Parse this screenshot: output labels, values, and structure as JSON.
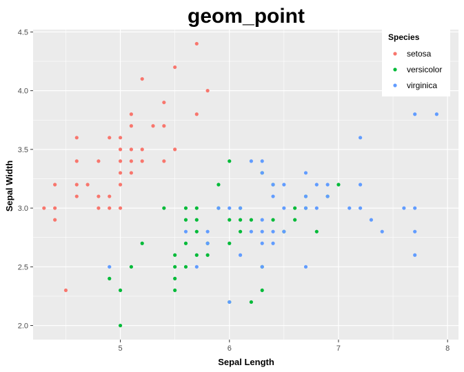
{
  "chart_data": {
    "type": "scatter",
    "title": "geom_point",
    "xlabel": "Sepal Length",
    "ylabel": "Sepal Width",
    "xlim": [
      4.2,
      8.1
    ],
    "ylim": [
      1.88,
      4.52
    ],
    "x_ticks": [
      5,
      6,
      7,
      8
    ],
    "x_tick_labels": [
      "5",
      "6",
      "7",
      "8"
    ],
    "y_ticks": [
      2.0,
      2.5,
      3.0,
      3.5,
      4.0,
      4.5
    ],
    "y_tick_labels": [
      "2.0",
      "2.5",
      "3.0",
      "3.5",
      "4.0",
      "4.5"
    ],
    "grid": true,
    "legend": {
      "title": "Species",
      "position": "top-right"
    },
    "series": [
      {
        "name": "setosa",
        "color": "#F8766D",
        "points": [
          [
            4.3,
            3.0
          ],
          [
            4.4,
            3.2
          ],
          [
            4.4,
            3.0
          ],
          [
            4.4,
            2.9
          ],
          [
            4.5,
            2.3
          ],
          [
            4.6,
            3.6
          ],
          [
            4.6,
            3.4
          ],
          [
            4.6,
            3.2
          ],
          [
            4.6,
            3.1
          ],
          [
            4.7,
            3.2
          ],
          [
            4.8,
            3.4
          ],
          [
            4.8,
            3.1
          ],
          [
            4.8,
            3.0
          ],
          [
            4.9,
            3.6
          ],
          [
            4.9,
            3.1
          ],
          [
            4.9,
            3.0
          ],
          [
            5.0,
            3.6
          ],
          [
            5.0,
            3.5
          ],
          [
            5.0,
            3.4
          ],
          [
            5.0,
            3.3
          ],
          [
            5.0,
            3.2
          ],
          [
            5.0,
            3.0
          ],
          [
            5.1,
            3.8
          ],
          [
            5.1,
            3.7
          ],
          [
            5.1,
            3.5
          ],
          [
            5.1,
            3.4
          ],
          [
            5.1,
            3.3
          ],
          [
            5.2,
            4.1
          ],
          [
            5.2,
            3.5
          ],
          [
            5.2,
            3.4
          ],
          [
            5.3,
            3.7
          ],
          [
            5.4,
            3.9
          ],
          [
            5.4,
            3.7
          ],
          [
            5.4,
            3.4
          ],
          [
            5.5,
            4.2
          ],
          [
            5.5,
            3.5
          ],
          [
            5.7,
            4.4
          ],
          [
            5.7,
            3.8
          ],
          [
            5.8,
            4.0
          ]
        ]
      },
      {
        "name": "versicolor",
        "color": "#00BA38",
        "points": [
          [
            4.9,
            2.4
          ],
          [
            5.0,
            2.3
          ],
          [
            5.0,
            2.0
          ],
          [
            5.1,
            2.5
          ],
          [
            5.2,
            2.7
          ],
          [
            5.4,
            3.0
          ],
          [
            5.5,
            2.6
          ],
          [
            5.5,
            2.5
          ],
          [
            5.5,
            2.4
          ],
          [
            5.5,
            2.3
          ],
          [
            5.6,
            3.0
          ],
          [
            5.6,
            2.9
          ],
          [
            5.6,
            2.7
          ],
          [
            5.6,
            2.5
          ],
          [
            5.7,
            3.0
          ],
          [
            5.7,
            2.9
          ],
          [
            5.7,
            2.8
          ],
          [
            5.7,
            2.6
          ],
          [
            5.8,
            2.7
          ],
          [
            5.8,
            2.6
          ],
          [
            5.9,
            3.2
          ],
          [
            5.9,
            3.0
          ],
          [
            6.0,
            3.4
          ],
          [
            6.0,
            2.9
          ],
          [
            6.0,
            2.7
          ],
          [
            6.0,
            2.2
          ],
          [
            6.1,
            3.0
          ],
          [
            6.1,
            2.9
          ],
          [
            6.1,
            2.8
          ],
          [
            6.2,
            2.9
          ],
          [
            6.2,
            2.2
          ],
          [
            6.3,
            3.3
          ],
          [
            6.3,
            2.5
          ],
          [
            6.3,
            2.3
          ],
          [
            6.4,
            3.2
          ],
          [
            6.4,
            2.9
          ],
          [
            6.5,
            2.8
          ],
          [
            6.6,
            3.0
          ],
          [
            6.6,
            2.9
          ],
          [
            6.7,
            3.1
          ],
          [
            6.7,
            3.0
          ],
          [
            6.8,
            2.8
          ],
          [
            6.9,
            3.1
          ],
          [
            7.0,
            3.2
          ]
        ]
      },
      {
        "name": "virginica",
        "color": "#619CFF",
        "points": [
          [
            4.9,
            2.5
          ],
          [
            5.6,
            2.8
          ],
          [
            5.7,
            2.5
          ],
          [
            5.8,
            2.8
          ],
          [
            5.8,
            2.7
          ],
          [
            5.9,
            3.0
          ],
          [
            6.0,
            3.0
          ],
          [
            6.0,
            2.2
          ],
          [
            6.1,
            3.0
          ],
          [
            6.1,
            2.6
          ],
          [
            6.2,
            3.4
          ],
          [
            6.2,
            2.8
          ],
          [
            6.3,
            3.4
          ],
          [
            6.3,
            3.3
          ],
          [
            6.3,
            2.9
          ],
          [
            6.3,
            2.8
          ],
          [
            6.3,
            2.7
          ],
          [
            6.3,
            2.5
          ],
          [
            6.4,
            3.2
          ],
          [
            6.4,
            3.1
          ],
          [
            6.4,
            2.8
          ],
          [
            6.4,
            2.7
          ],
          [
            6.5,
            3.2
          ],
          [
            6.5,
            3.0
          ],
          [
            6.5,
            2.8
          ],
          [
            6.7,
            3.3
          ],
          [
            6.7,
            3.1
          ],
          [
            6.7,
            3.0
          ],
          [
            6.7,
            2.5
          ],
          [
            6.8,
            3.2
          ],
          [
            6.8,
            3.0
          ],
          [
            6.9,
            3.2
          ],
          [
            6.9,
            3.1
          ],
          [
            7.1,
            3.0
          ],
          [
            7.2,
            3.6
          ],
          [
            7.2,
            3.2
          ],
          [
            7.2,
            3.0
          ],
          [
            7.3,
            2.9
          ],
          [
            7.4,
            2.8
          ],
          [
            7.6,
            3.0
          ],
          [
            7.7,
            3.8
          ],
          [
            7.7,
            3.0
          ],
          [
            7.7,
            2.8
          ],
          [
            7.7,
            2.6
          ],
          [
            7.9,
            3.8
          ]
        ]
      }
    ]
  }
}
